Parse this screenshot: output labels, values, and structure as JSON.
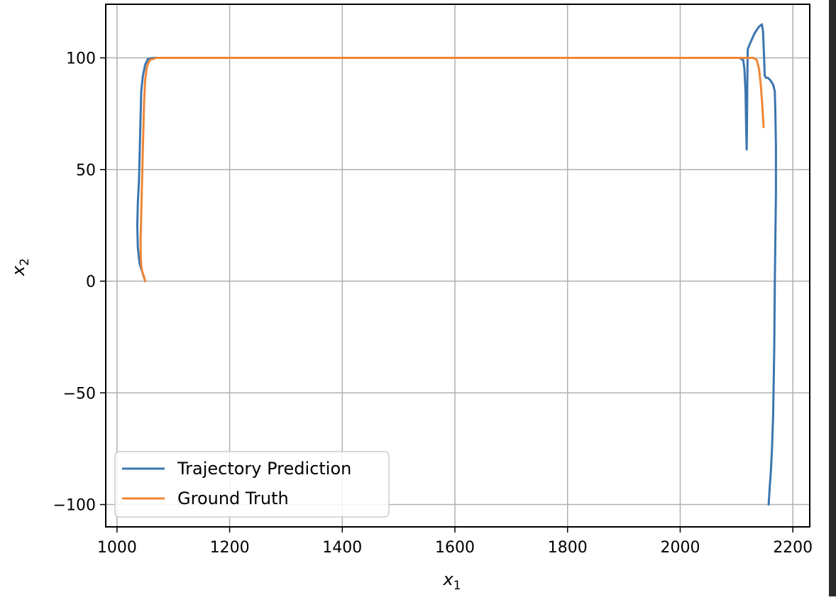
{
  "chart_data": {
    "type": "line",
    "xlabel": "x",
    "xlabel_sub": "1",
    "ylabel": "x",
    "ylabel_sub": "2",
    "xlim": [
      980,
      2230
    ],
    "ylim": [
      -110,
      124
    ],
    "xticks": [
      1000,
      1200,
      1400,
      1600,
      1800,
      2000,
      2200
    ],
    "yticks": [
      -100,
      -50,
      0,
      50,
      100
    ],
    "xtick_labels": [
      "1000",
      "1200",
      "1400",
      "1600",
      "1800",
      "2000",
      "2200"
    ],
    "ytick_labels": [
      "−100",
      "−50",
      "0",
      "50",
      "100"
    ],
    "grid": true,
    "legend_position": "lower-left",
    "series": [
      {
        "name": "Trajectory Prediction",
        "color": "#3b75af",
        "points": [
          [
            1050,
            0
          ],
          [
            1045,
            4
          ],
          [
            1040,
            8
          ],
          [
            1037,
            15
          ],
          [
            1036,
            25
          ],
          [
            1037,
            35
          ],
          [
            1039,
            45
          ],
          [
            1040,
            55
          ],
          [
            1041,
            65
          ],
          [
            1042,
            75
          ],
          [
            1043,
            85
          ],
          [
            1046,
            92
          ],
          [
            1050,
            97
          ],
          [
            1055,
            99.5
          ],
          [
            1065,
            100
          ],
          [
            1100,
            100
          ],
          [
            1300,
            100
          ],
          [
            1500,
            100
          ],
          [
            1700,
            100
          ],
          [
            1900,
            100
          ],
          [
            2050,
            100
          ],
          [
            2105,
            100
          ],
          [
            2112,
            99
          ],
          [
            2114,
            95
          ],
          [
            2116,
            85
          ],
          [
            2117,
            70
          ],
          [
            2118,
            59
          ],
          [
            2118.5,
            68
          ],
          [
            2119,
            85
          ],
          [
            2119.5,
            97
          ],
          [
            2120,
            104
          ],
          [
            2125,
            107
          ],
          [
            2132,
            111
          ],
          [
            2140,
            114
          ],
          [
            2145,
            115
          ],
          [
            2147,
            112
          ],
          [
            2149,
            100
          ],
          [
            2150,
            92
          ],
          [
            2153,
            91
          ],
          [
            2156,
            91
          ],
          [
            2160,
            90
          ],
          [
            2165,
            88
          ],
          [
            2168,
            85
          ],
          [
            2169,
            75
          ],
          [
            2170,
            60
          ],
          [
            2170,
            40
          ],
          [
            2169,
            20
          ],
          [
            2168,
            0
          ],
          [
            2167,
            -30
          ],
          [
            2165,
            -60
          ],
          [
            2163,
            -75
          ],
          [
            2161,
            -85
          ],
          [
            2159,
            -92
          ],
          [
            2157,
            -100
          ]
        ]
      },
      {
        "name": "Ground Truth",
        "color": "#ef8636",
        "points": [
          [
            1050,
            0
          ],
          [
            1048,
            2
          ],
          [
            1045,
            4
          ],
          [
            1043,
            7
          ],
          [
            1042,
            12
          ],
          [
            1042,
            20
          ],
          [
            1043,
            30
          ],
          [
            1044,
            40
          ],
          [
            1045,
            50
          ],
          [
            1046,
            60
          ],
          [
            1047,
            70
          ],
          [
            1048,
            80
          ],
          [
            1050,
            90
          ],
          [
            1053,
            96
          ],
          [
            1058,
            99
          ],
          [
            1070,
            100
          ],
          [
            1100,
            100
          ],
          [
            1300,
            100
          ],
          [
            1500,
            100
          ],
          [
            1700,
            100
          ],
          [
            1900,
            100
          ],
          [
            2100,
            100
          ],
          [
            2130,
            100
          ],
          [
            2136,
            99
          ],
          [
            2140,
            95
          ],
          [
            2143,
            88
          ],
          [
            2146,
            78
          ],
          [
            2148,
            69
          ]
        ]
      }
    ]
  }
}
